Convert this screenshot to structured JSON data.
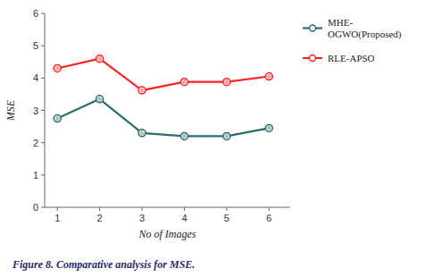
{
  "chart_data": {
    "type": "line",
    "title": "Figure 8. Comparative analysis for MSE.",
    "x_label": "No of Images",
    "y_label": "MSE",
    "x": [
      1,
      2,
      3,
      4,
      5,
      6
    ],
    "series": [
      {
        "name": "MHE-\nOGWO(Proposed)",
        "color": "#2e6b6b",
        "marker": "circle",
        "values": [
          2.75,
          3.35,
          2.3,
          2.2,
          2.2,
          2.45
        ]
      },
      {
        "name": "RLE-APSO",
        "color": "#ff2222",
        "marker": "circle",
        "values": [
          4.3,
          4.6,
          3.62,
          3.88,
          3.88,
          4.05
        ]
      }
    ],
    "xlim": [
      0.7,
      6.5
    ],
    "ylim": [
      0,
      6
    ],
    "xticks": [
      1,
      2,
      3,
      4,
      5,
      6
    ],
    "yticks": [
      0,
      1,
      2,
      3,
      4,
      5,
      6
    ],
    "grid": false,
    "legend": "right"
  }
}
